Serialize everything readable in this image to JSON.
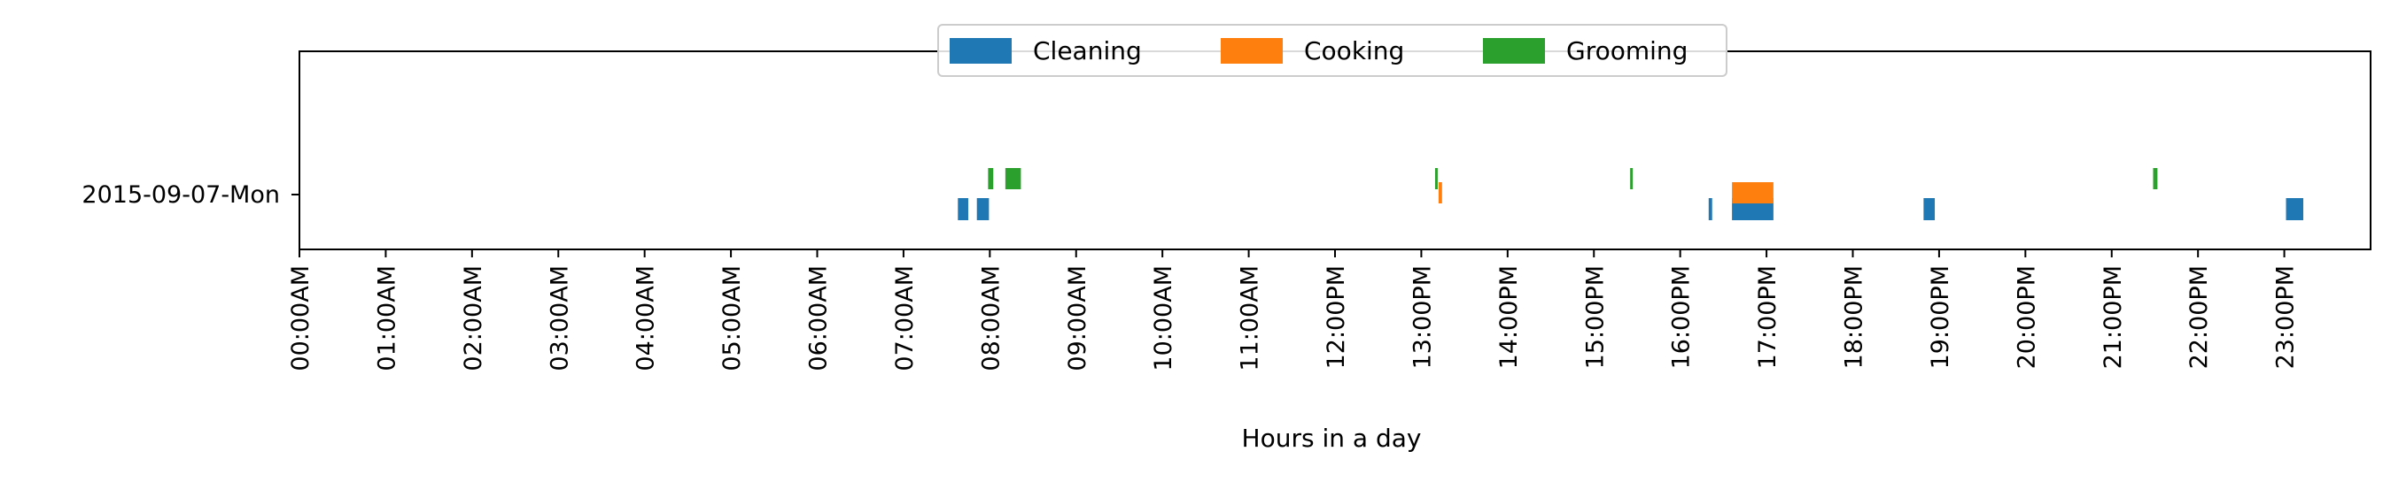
{
  "chart_data": {
    "type": "timeline",
    "title": "",
    "xlabel": "Hours in a day",
    "ylabel": "",
    "x_unit": "hours",
    "xlim": [
      0,
      24
    ],
    "x_ticks": [
      0,
      1,
      2,
      3,
      4,
      5,
      6,
      7,
      8,
      9,
      10,
      11,
      12,
      13,
      14,
      15,
      16,
      17,
      18,
      19,
      20,
      21,
      22,
      23
    ],
    "x_tick_labels": [
      "00:00AM",
      "01:00AM",
      "02:00AM",
      "03:00AM",
      "04:00AM",
      "05:00AM",
      "06:00AM",
      "07:00AM",
      "08:00AM",
      "09:00AM",
      "10:00AM",
      "11:00AM",
      "12:00PM",
      "13:00PM",
      "14:00PM",
      "15:00PM",
      "16:00PM",
      "17:00PM",
      "18:00PM",
      "19:00PM",
      "20:00PM",
      "21:00PM",
      "22:00PM",
      "23:00PM"
    ],
    "categories": [
      "2015-09-07-Mon"
    ],
    "grid": false,
    "legend": {
      "placement": "top-center",
      "entries": [
        "Cleaning",
        "Cooking",
        "Grooming"
      ]
    },
    "series": [
      {
        "name": "Cleaning",
        "color": "#1f77b4",
        "intervals": [
          {
            "day": "2015-09-07-Mon",
            "start": 7.63,
            "end": 7.75
          },
          {
            "day": "2015-09-07-Mon",
            "start": 7.85,
            "end": 7.99
          },
          {
            "day": "2015-09-07-Mon",
            "start": 16.33,
            "end": 16.37
          },
          {
            "day": "2015-09-07-Mon",
            "start": 16.6,
            "end": 17.08
          },
          {
            "day": "2015-09-07-Mon",
            "start": 18.82,
            "end": 18.95
          },
          {
            "day": "2015-09-07-Mon",
            "start": 23.02,
            "end": 23.22
          }
        ]
      },
      {
        "name": "Cooking",
        "color": "#ff7f0e",
        "intervals": [
          {
            "day": "2015-09-07-Mon",
            "start": 13.2,
            "end": 13.24
          },
          {
            "day": "2015-09-07-Mon",
            "start": 16.6,
            "end": 17.08
          }
        ]
      },
      {
        "name": "Grooming",
        "color": "#2ca02c",
        "intervals": [
          {
            "day": "2015-09-07-Mon",
            "start": 7.98,
            "end": 8.04
          },
          {
            "day": "2015-09-07-Mon",
            "start": 8.18,
            "end": 8.36
          },
          {
            "day": "2015-09-07-Mon",
            "start": 13.16,
            "end": 13.19
          },
          {
            "day": "2015-09-07-Mon",
            "start": 15.42,
            "end": 15.45
          },
          {
            "day": "2015-09-07-Mon",
            "start": 21.48,
            "end": 21.53
          }
        ]
      }
    ]
  }
}
